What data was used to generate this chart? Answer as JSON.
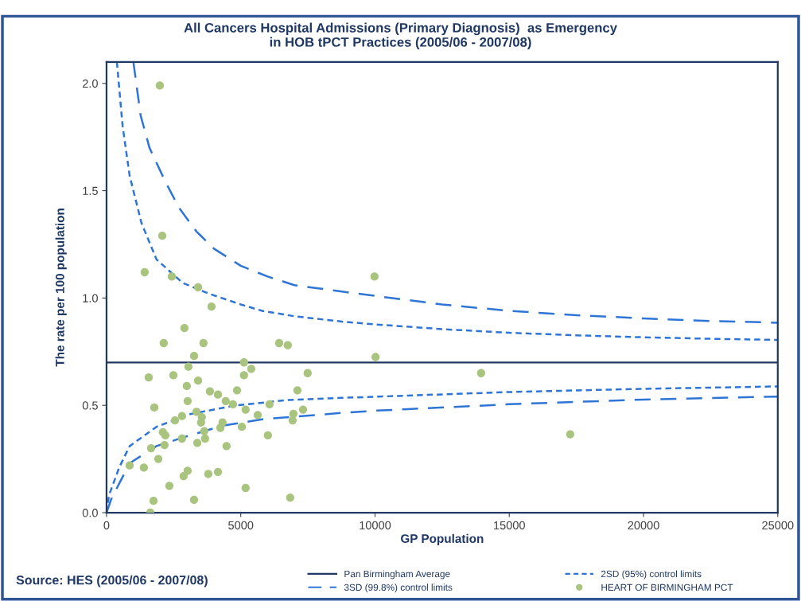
{
  "chart_data": {
    "type": "scatter",
    "title": "All Cancers Hospital Admissions (Primary Diagnosis)  as Emergency\nin HOB tPCT Practices (2005/06 - 2007/08)",
    "xlabel": "GP Population",
    "ylabel": "The rate per 100 population",
    "xlim": [
      0,
      25000
    ],
    "xticks": [
      0,
      5000,
      10000,
      15000,
      20000,
      25000
    ],
    "ylim": [
      0,
      2.1
    ],
    "yticks": [
      {
        "value": 0,
        "label": "0.0"
      },
      {
        "value": 0.5,
        "label": "0.5"
      },
      {
        "value": 1,
        "label": "1.0"
      },
      {
        "value": 1.5,
        "label": "1.5"
      },
      {
        "value": 2,
        "label": "2.0"
      }
    ],
    "grid": false,
    "legend": "bottom",
    "ref_lines": [
      {
        "axis": "y",
        "value": 0.7,
        "label": "Pan Birmingham Average",
        "color": "#1f3864",
        "line_style": "solid"
      }
    ],
    "series": [
      {
        "name": "2SD (95%) control limits",
        "type": "line",
        "color": "#2e75d6",
        "line_style": "dotted",
        "marker": "none",
        "x": [
          385,
          600,
          860,
          1300,
          1860,
          2840,
          3820,
          5000,
          5800,
          7000,
          8770,
          10000,
          12500,
          15000,
          17500,
          20000,
          22500,
          25000
        ],
        "values": [
          2.1,
          1.8,
          1.57,
          1.35,
          1.18,
          1.07,
          1.02,
          0.97,
          0.94,
          0.915,
          0.89,
          0.877,
          0.855,
          0.838,
          0.826,
          0.817,
          0.81,
          0.805
        ]
      },
      {
        "type": "line",
        "color": "#2e75d6",
        "line_style": "dotted",
        "marker": "none",
        "x": [
          0,
          90,
          470,
          860,
          1860,
          3140,
          4830,
          6790,
          8770,
          10000,
          15000,
          20000,
          25000
        ],
        "values": [
          0,
          0.08,
          0.21,
          0.31,
          0.4,
          0.46,
          0.5,
          0.525,
          0.535,
          0.54,
          0.562,
          0.577,
          0.588
        ]
      },
      {
        "name": "3SD (99.8%) control limits",
        "type": "line",
        "color": "#2e75d6",
        "line_style": "dashed",
        "marker": "none",
        "x": [
          1000,
          1270,
          1600,
          2160,
          2700,
          3350,
          4000,
          5000,
          6000,
          7000,
          8770,
          10000,
          12500,
          15000,
          17500,
          20000,
          22500,
          25000
        ],
        "values": [
          2.1,
          1.85,
          1.7,
          1.55,
          1.42,
          1.31,
          1.23,
          1.15,
          1.1,
          1.06,
          1.03,
          1.01,
          0.97,
          0.94,
          0.92,
          0.905,
          0.893,
          0.885
        ]
      },
      {
        "type": "line",
        "color": "#2e75d6",
        "line_style": "dashed",
        "marker": "none",
        "x": [
          0,
          180,
          860,
          1860,
          2840,
          4320,
          5800,
          8770,
          10000,
          15000,
          20000,
          25000
        ],
        "values": [
          0,
          0.065,
          0.23,
          0.31,
          0.35,
          0.405,
          0.435,
          0.465,
          0.475,
          0.505,
          0.527,
          0.541
        ]
      },
      {
        "name": "HEART OF BIRMINGHAM PCT",
        "color": "#a9c47f",
        "marker": "circle",
        "x": [
          1985,
          2075,
          1420,
          2430,
          3410,
          3910,
          2900,
          2130,
          3610,
          6430,
          6750,
          3260,
          5120,
          3050,
          5390,
          1570,
          2490,
          5120,
          7490,
          3410,
          2990,
          7110,
          3850,
          4860,
          4150,
          3020,
          4440,
          4710,
          6070,
          1780,
          5180,
          7320,
          3350,
          5630,
          6960,
          2550,
          2810,
          3550,
          3520,
          4320,
          4240,
          6930,
          5040,
          2100,
          3640,
          2190,
          2810,
          3670,
          6010,
          3380,
          2160,
          1660,
          4470,
          1930,
          860,
          1390,
          3020,
          2870,
          3790,
          4150,
          2340,
          5180,
          1750,
          3260,
          6840,
          1630,
          9980,
          10020,
          13950,
          17270
        ],
        "values": [
          1.99,
          1.29,
          1.12,
          1.1,
          1.05,
          0.96,
          0.86,
          0.79,
          0.79,
          0.79,
          0.78,
          0.73,
          0.7,
          0.68,
          0.67,
          0.63,
          0.64,
          0.64,
          0.65,
          0.615,
          0.59,
          0.57,
          0.565,
          0.57,
          0.55,
          0.52,
          0.52,
          0.505,
          0.505,
          0.49,
          0.48,
          0.48,
          0.47,
          0.455,
          0.46,
          0.43,
          0.45,
          0.445,
          0.42,
          0.42,
          0.395,
          0.43,
          0.4,
          0.375,
          0.38,
          0.36,
          0.345,
          0.345,
          0.36,
          0.325,
          0.315,
          0.3,
          0.31,
          0.25,
          0.22,
          0.21,
          0.195,
          0.17,
          0.18,
          0.19,
          0.125,
          0.115,
          0.055,
          0.06,
          0.07,
          0.0,
          1.1,
          0.725,
          0.65,
          0.365
        ]
      }
    ],
    "annotations": [
      "Source: HES (2005/06 - 2007/08)"
    ]
  }
}
